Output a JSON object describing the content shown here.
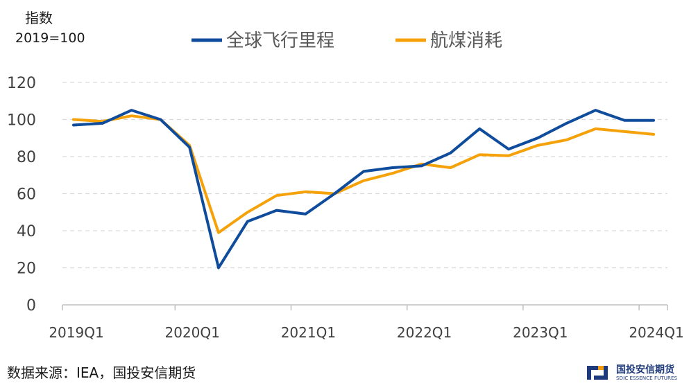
{
  "header": {
    "unit": "指数",
    "base": "2019=100"
  },
  "footer": {
    "source": "数据来源：IEA，国投安信期货"
  },
  "logo": {
    "name_cn": "国投安信期货",
    "name_en": "SDIC ESSENCE FUTURES",
    "colors": {
      "blue": "#1f3a7a",
      "orange": "#f39c12"
    }
  },
  "chart_data": {
    "type": "line",
    "categories": [
      "2019Q1",
      "2019Q2",
      "2019Q3",
      "2019Q4",
      "2020Q1",
      "2020Q2",
      "2020Q3",
      "2020Q4",
      "2021Q1",
      "2021Q2",
      "2021Q3",
      "2021Q4",
      "2022Q1",
      "2022Q2",
      "2022Q3",
      "2022Q4",
      "2023Q1",
      "2023Q2",
      "2023Q3",
      "2023Q4",
      "2024Q1"
    ],
    "xtick_labels": [
      "2019Q1",
      "2020Q1",
      "2021Q1",
      "2022Q1",
      "2023Q1",
      "2024Q1"
    ],
    "yticks": [
      0,
      20,
      40,
      60,
      80,
      100,
      120
    ],
    "ylim": [
      0,
      120
    ],
    "grid": true,
    "legend_position": "top-center",
    "series": [
      {
        "name": "全球飞行里程",
        "color": "#0f4c9c",
        "values": [
          97,
          98,
          105,
          100,
          85,
          20,
          45,
          51,
          49,
          60,
          72,
          74,
          75,
          82,
          95,
          84,
          90,
          98,
          105,
          99.5,
          99.5
        ]
      },
      {
        "name": "航煤消耗",
        "color": "#f5a20a",
        "values": [
          100,
          99,
          102,
          100,
          86,
          39,
          50,
          59,
          61,
          60,
          67,
          71,
          76,
          74,
          81,
          80.5,
          86,
          89,
          95,
          93.5,
          92
        ]
      }
    ]
  }
}
